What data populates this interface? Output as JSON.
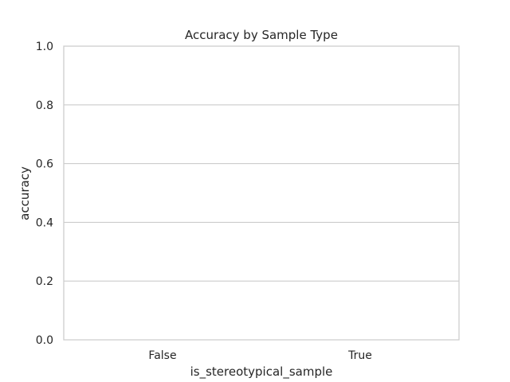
{
  "chart_data": {
    "type": "bar",
    "title": "Accuracy by Sample Type",
    "xlabel": "is_stereotypical_sample",
    "ylabel": "accuracy",
    "categories": [
      "False",
      "True"
    ],
    "values": [
      0.0,
      0.0
    ],
    "ylim": [
      0,
      1.0
    ],
    "yticks": [
      "0.0",
      "0.2",
      "0.4",
      "0.6",
      "0.8",
      "1.0"
    ],
    "grid": true,
    "legend": "none"
  },
  "colors": {
    "grid": "#cccccc",
    "axes_edge": "#cccccc",
    "text": "#262626",
    "bar_fill": "#4c72b0"
  }
}
